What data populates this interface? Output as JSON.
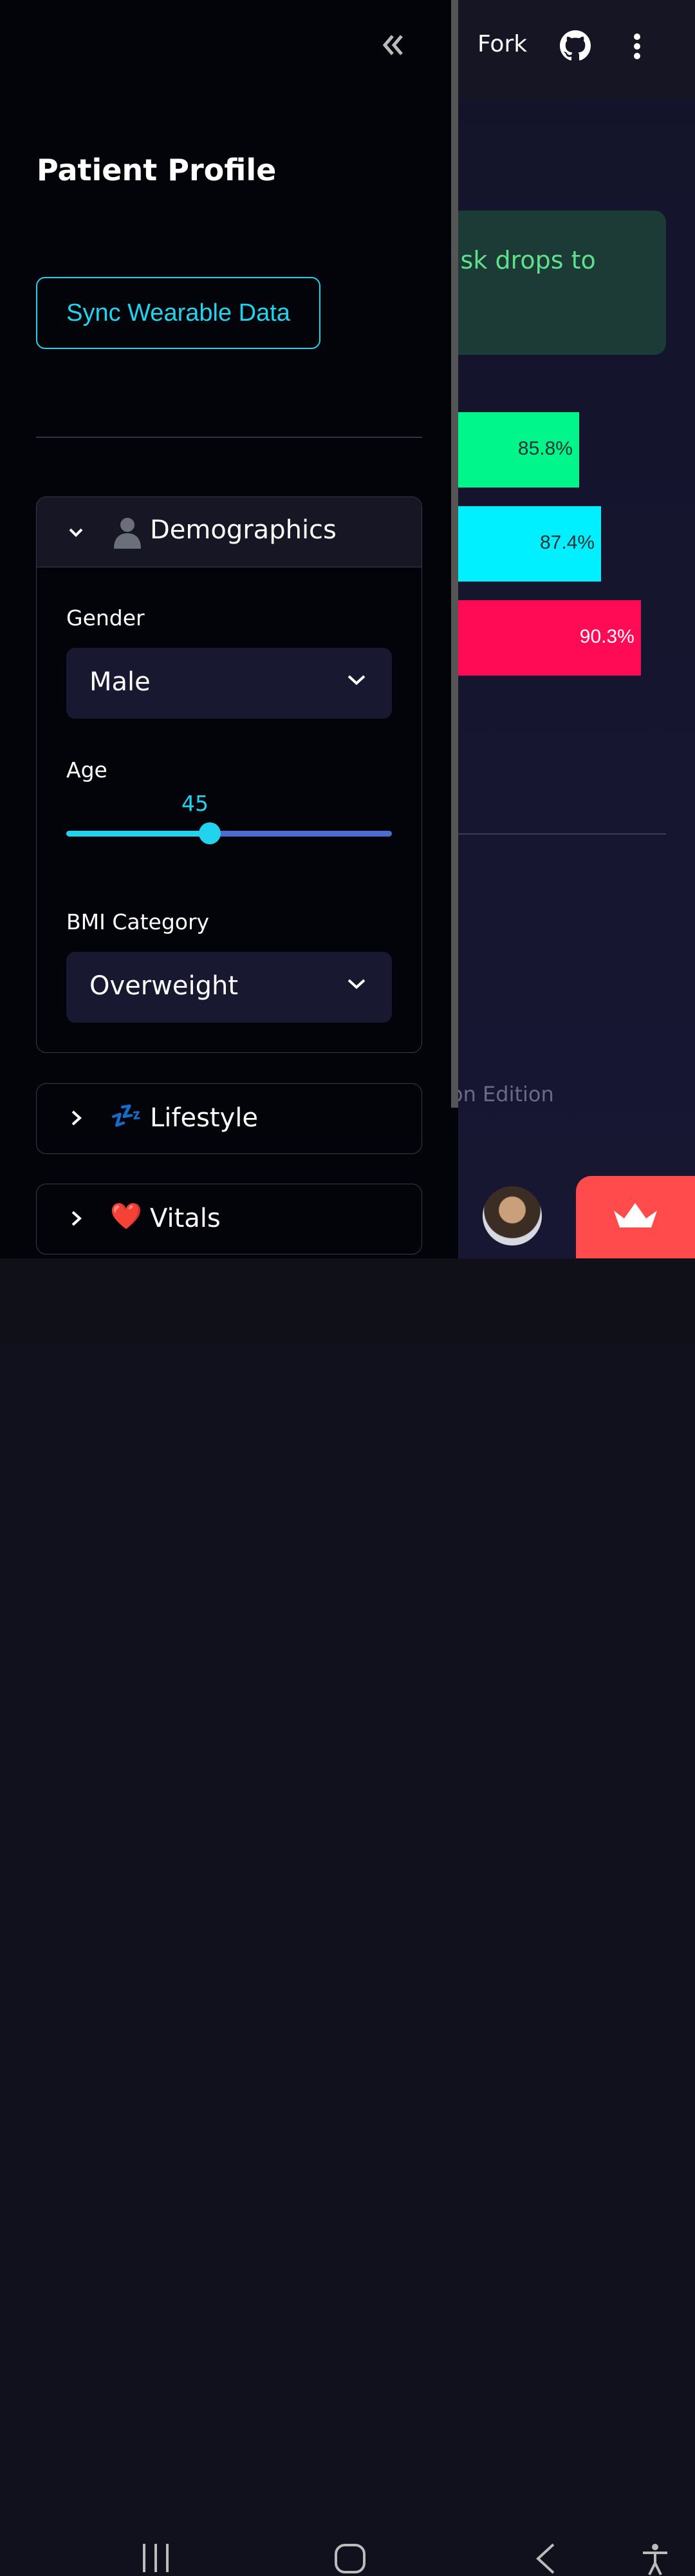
{
  "header": {
    "fork_label": "Fork"
  },
  "main": {
    "alert_text": "isk drops to",
    "bars": [
      {
        "label": "85.8%",
        "value": 85.8,
        "color": "#00f58a",
        "text_color": "#333333"
      },
      {
        "label": "87.4%",
        "value": 87.4,
        "color": "#00f0ff",
        "text_color": "#333333"
      },
      {
        "label": "90.3%",
        "value": 90.3,
        "color": "#ff0a55",
        "text_color": "#ffffff"
      }
    ],
    "footer_text": "on Edition"
  },
  "sidebar": {
    "title": "Patient Profile",
    "sync_button": "Sync Wearable Data",
    "demographics": {
      "title": "Demographics",
      "gender_label": "Gender",
      "gender_value": "Male",
      "age_label": "Age",
      "age_value": "45",
      "age_fraction": 0.44,
      "bmi_label": "BMI Category",
      "bmi_value": "Overweight"
    },
    "lifestyle": {
      "icon": "💤",
      "title": "Lifestyle"
    },
    "vitals": {
      "icon": "❤️",
      "title": "Vitals"
    }
  },
  "colors": {
    "accent": "#22d3ee",
    "alert_bg": "#1c3b36",
    "alert_text": "#5fe08a",
    "deploy": "#ff4b4b"
  }
}
